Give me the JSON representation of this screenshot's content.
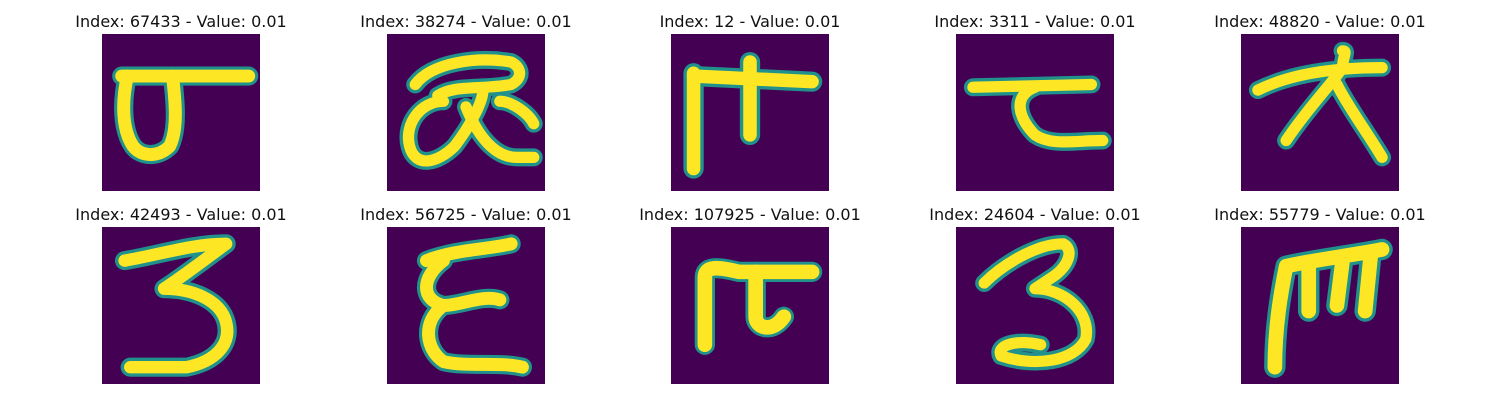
{
  "figure": {
    "background": "#440154",
    "stroke_core": "#fde725",
    "stroke_edge": "#21918c",
    "panels": [
      {
        "title": "Index: 67433 - Value: 0.01",
        "glyph": "glyph-67433"
      },
      {
        "title": "Index: 38274 - Value: 0.01",
        "glyph": "glyph-38274"
      },
      {
        "title": "Index: 12 - Value: 0.01",
        "glyph": "glyph-12"
      },
      {
        "title": "Index: 3311 - Value: 0.01",
        "glyph": "glyph-3311"
      },
      {
        "title": "Index: 48820 - Value: 0.01",
        "glyph": "glyph-48820"
      },
      {
        "title": "Index: 42493 - Value: 0.01",
        "glyph": "glyph-42493"
      },
      {
        "title": "Index: 56725 - Value: 0.01",
        "glyph": "glyph-56725"
      },
      {
        "title": "Index: 107925 - Value: 0.01",
        "glyph": "glyph-107925"
      },
      {
        "title": "Index: 24604 - Value: 0.01",
        "glyph": "glyph-24604"
      },
      {
        "title": "Index: 55779 - Value: 0.01",
        "glyph": "glyph-55779"
      }
    ]
  }
}
